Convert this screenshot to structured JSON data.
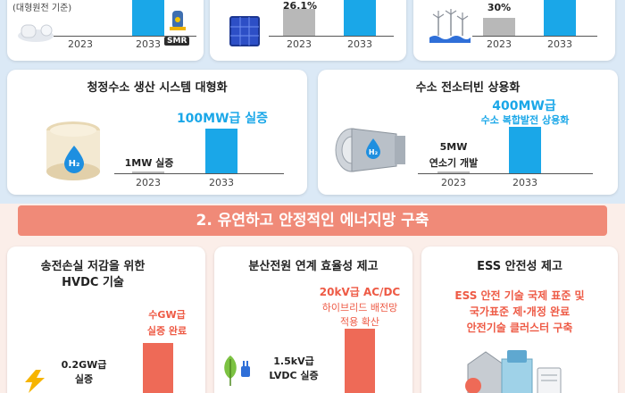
{
  "section1": {
    "top_cards": [
      {
        "note": "(대형원전 기준)",
        "label_2023": "2023",
        "label_2033": "2033",
        "badge": "SMR"
      },
      {
        "value_2023": "26.1%",
        "label_2023": "2023",
        "label_2033": "2033"
      },
      {
        "value_2023": "30%",
        "label_2023": "2023",
        "label_2033": "2033"
      }
    ],
    "hydrogen_card": {
      "title": "청정수소 생산 시스템 대형화",
      "value_2023": "1MW 실증",
      "value_2033": "100MW급 실증",
      "label_2023": "2023",
      "label_2033": "2033",
      "h2_badge": "H₂"
    },
    "turbine_card": {
      "title": "수소 전소터빈 상용화",
      "value_2023_line1": "5MW",
      "value_2023_line2": "연소기 개발",
      "value_2033_line1": "400MW급",
      "value_2033_line2": "수소 복합발전 상용화",
      "label_2023": "2023",
      "label_2033": "2033",
      "h2_badge": "H₂"
    }
  },
  "banner": {
    "title": "2. 유연하고 안정적인 에너지망 구축"
  },
  "section2": {
    "hvdc_card": {
      "title_line1": "송전손실 저감을 위한",
      "title_line2": "HVDC 기술",
      "value_2023_line1": "0.2GW급",
      "value_2023_line2": "실증",
      "value_2033_line1": "수GW급",
      "value_2033_line2": "실증 완료"
    },
    "distributed_card": {
      "title": "분산전원 연계 효율성 제고",
      "value_2023_line1": "1.5kV급",
      "value_2023_line2": "LVDC 실증",
      "value_2033_line1": "20kV급 AC/DC",
      "value_2033_line2": "하이브리드 배전망",
      "value_2033_line3": "적용 확산"
    },
    "ess_card": {
      "title": "ESS 안전성 제고",
      "body_line1": "ESS 안전 기술 국제 표준 및",
      "body_line2": "국가표준 제·개정 완료",
      "body_line3": "안전기술 클러스터 구축"
    }
  },
  "colors": {
    "blue": "#1aa7e8",
    "red": "#ee6a57",
    "gray": "#b8b8b8",
    "banner": "#f08a78"
  }
}
